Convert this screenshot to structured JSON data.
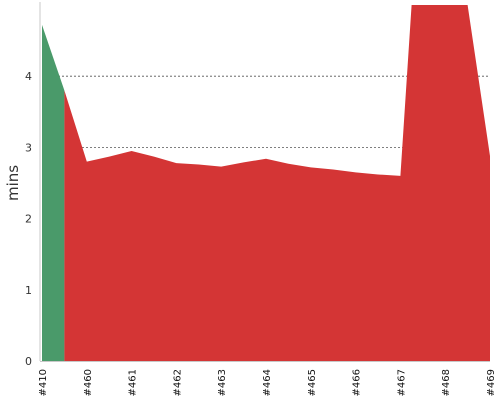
{
  "chart_data": {
    "type": "area",
    "ylabel": "mins",
    "ylim": [
      0,
      5
    ],
    "yticks": [
      0,
      1,
      2,
      3,
      4
    ],
    "categories": [
      "#410",
      "#460",
      "#461",
      "#462",
      "#463",
      "#464",
      "#465",
      "#466",
      "#467",
      "#468",
      "#469"
    ],
    "x": [
      0,
      0.5,
      1,
      1.5,
      2,
      2.5,
      3,
      3.5,
      4,
      4.5,
      5,
      5.5,
      6,
      6.5,
      7,
      7.5,
      8,
      8.5,
      9,
      9.5,
      10
    ],
    "grid": true,
    "series": [
      {
        "color": "#4a9a6a",
        "x": [
          0,
          0.5
        ],
        "values": [
          4.72,
          3.8
        ]
      },
      {
        "color": "#d43535",
        "x": [
          0.5,
          1,
          1.5,
          2,
          2.5,
          3,
          3.5,
          4,
          4.5,
          5,
          5.5,
          6,
          6.5,
          7,
          7.5,
          8,
          8.25,
          8.5,
          9,
          9.5,
          10
        ],
        "values": [
          3.8,
          2.8,
          2.87,
          2.95,
          2.87,
          2.78,
          2.76,
          2.73,
          2.79,
          2.84,
          2.77,
          2.72,
          2.69,
          2.65,
          2.62,
          2.6,
          5.0,
          5.0,
          5.0,
          5.0,
          2.88
        ]
      }
    ]
  }
}
